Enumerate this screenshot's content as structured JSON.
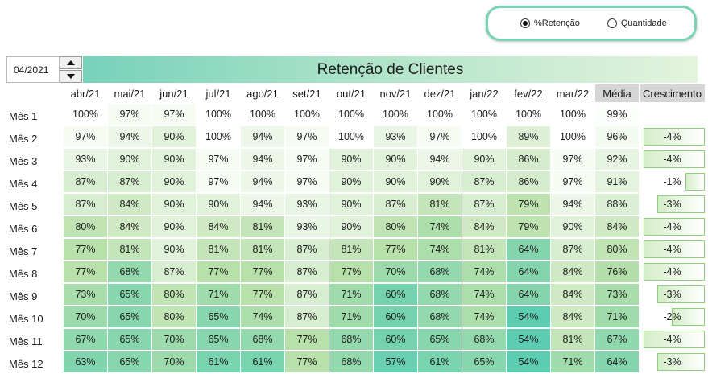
{
  "controls": {
    "radio_options": [
      {
        "label": "%Retenção",
        "checked": true
      },
      {
        "label": "Quantidade",
        "checked": false
      }
    ],
    "date_value": "04/2021"
  },
  "table": {
    "title": "Retenção de Clientes",
    "columns": [
      "abr/21",
      "mai/21",
      "jun/21",
      "jul/21",
      "ago/21",
      "set/21",
      "out/21",
      "nov/21",
      "dez/21",
      "jan/22",
      "fev/22",
      "mar/22"
    ],
    "avg_label": "Média",
    "growth_label": "Crescimento",
    "rows": [
      {
        "label": "Mês 1",
        "values": [
          100,
          97,
          97,
          100,
          100,
          100,
          100,
          100,
          100,
          100,
          100,
          100
        ],
        "avg": 99,
        "growth": ""
      },
      {
        "label": "Mês 2",
        "values": [
          97,
          94,
          90,
          100,
          94,
          97,
          100,
          93,
          97,
          100,
          89,
          100
        ],
        "avg": 96,
        "growth": "-4%"
      },
      {
        "label": "Mês 3",
        "values": [
          93,
          90,
          90,
          97,
          94,
          97,
          90,
          90,
          94,
          90,
          86,
          97
        ],
        "avg": 92,
        "growth": "-4%"
      },
      {
        "label": "Mês 4",
        "values": [
          87,
          87,
          90,
          97,
          94,
          97,
          90,
          90,
          90,
          87,
          86,
          97
        ],
        "avg": 91,
        "growth": "-1%"
      },
      {
        "label": "Mês 5",
        "values": [
          87,
          84,
          90,
          90,
          94,
          93,
          90,
          87,
          81,
          87,
          79,
          94
        ],
        "avg": 88,
        "growth": "-3%"
      },
      {
        "label": "Mês 6",
        "values": [
          80,
          84,
          90,
          84,
          81,
          93,
          90,
          80,
          74,
          84,
          79,
          90
        ],
        "avg": 84,
        "growth": "-4%"
      },
      {
        "label": "Mês 7",
        "values": [
          77,
          81,
          90,
          81,
          81,
          87,
          81,
          77,
          74,
          81,
          64,
          87
        ],
        "avg": 80,
        "growth": "-4%"
      },
      {
        "label": "Mês 8",
        "values": [
          77,
          68,
          87,
          77,
          77,
          87,
          77,
          70,
          68,
          74,
          64,
          84
        ],
        "avg": 76,
        "growth": "-4%"
      },
      {
        "label": "Mês 9",
        "values": [
          73,
          65,
          80,
          71,
          77,
          87,
          71,
          60,
          68,
          74,
          64,
          84
        ],
        "avg": 73,
        "growth": "-3%"
      },
      {
        "label": "Mês 10",
        "values": [
          70,
          65,
          80,
          65,
          74,
          87,
          71,
          60,
          68,
          74,
          54,
          84
        ],
        "avg": 71,
        "growth": "-2%"
      },
      {
        "label": "Mês 11",
        "values": [
          67,
          65,
          70,
          65,
          68,
          77,
          68,
          60,
          65,
          68,
          54,
          81
        ],
        "avg": 67,
        "growth": "-4%"
      },
      {
        "label": "Mês 12",
        "values": [
          63,
          65,
          70,
          61,
          61,
          77,
          68,
          57,
          61,
          65,
          54,
          71
        ],
        "avg": 64,
        "growth": "-3%"
      }
    ],
    "color_low": "#5ccdb1",
    "color_high": "#ffffff",
    "growth_bar_color": "#d4edc8"
  }
}
